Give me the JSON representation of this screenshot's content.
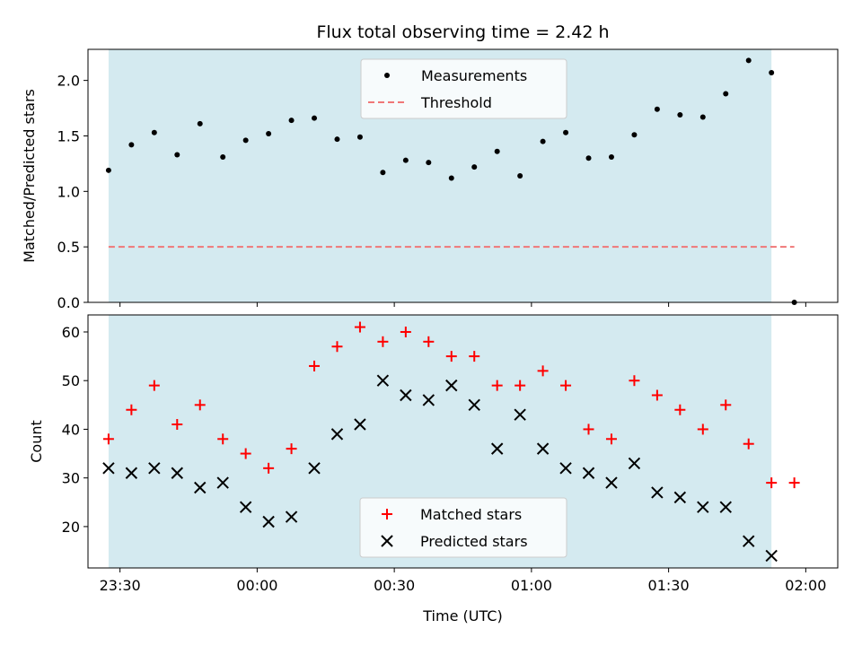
{
  "chart_data": [
    {
      "type": "scatter",
      "title": "Flux total observing time = 2.42 h",
      "ylabel": "Matched/Predicted stars",
      "xlabel": "",
      "xlim": [
        -37,
        127
      ],
      "ylim": [
        0,
        2.28
      ],
      "yticks": [
        0.0,
        0.5,
        1.0,
        1.5,
        2.0
      ],
      "ytick_labels": [
        "0.0",
        "0.5",
        "1.0",
        "1.5",
        "2.0"
      ],
      "shaded_span": [
        -32.5,
        112.5
      ],
      "shaded_color": "#d4eaf0",
      "legend_position": "upper center",
      "series": [
        {
          "name": "Measurements",
          "kind": "points",
          "color": "#000000",
          "x": [
            -32.5,
            -27.5,
            -22.5,
            -17.5,
            -12.5,
            -7.5,
            -2.5,
            2.5,
            7.5,
            12.5,
            17.5,
            22.5,
            27.5,
            32.5,
            37.5,
            42.5,
            47.5,
            52.5,
            57.5,
            62.5,
            67.5,
            72.5,
            77.5,
            82.5,
            87.5,
            92.5,
            97.5,
            102.5,
            107.5,
            112.5,
            117.5
          ],
          "y": [
            1.19,
            1.42,
            1.53,
            1.33,
            1.61,
            1.31,
            1.46,
            1.52,
            1.64,
            1.66,
            1.47,
            1.49,
            1.17,
            1.28,
            1.26,
            1.12,
            1.22,
            1.36,
            1.14,
            1.45,
            1.53,
            1.3,
            1.31,
            1.51,
            1.74,
            1.69,
            1.67,
            1.88,
            2.18,
            2.07,
            0.0
          ]
        },
        {
          "name": "Threshold",
          "kind": "dashed-line",
          "color": "#f07777",
          "x": [
            -32.5,
            117.5
          ],
          "y": [
            0.5,
            0.5
          ]
        }
      ]
    },
    {
      "type": "scatter",
      "title": "",
      "ylabel": "Count",
      "xlabel": "Time (UTC)",
      "xlim": [
        -37,
        127
      ],
      "ylim": [
        11.5,
        63.5
      ],
      "yticks": [
        20,
        30,
        40,
        50,
        60
      ],
      "ytick_labels": [
        "20",
        "30",
        "40",
        "50",
        "60"
      ],
      "xticks": [
        -30,
        0,
        30,
        60,
        90,
        120
      ],
      "xtick_labels": [
        "23:30",
        "00:00",
        "00:30",
        "01:00",
        "01:30",
        "02:00"
      ],
      "shaded_span": [
        -32.5,
        112.5
      ],
      "shaded_color": "#d4eaf0",
      "legend_position": "lower center",
      "series": [
        {
          "name": "Matched stars",
          "marker": "plus",
          "color": "#ff0000",
          "x": [
            -32.5,
            -27.5,
            -22.5,
            -17.5,
            -12.5,
            -7.5,
            -2.5,
            2.5,
            7.5,
            12.5,
            17.5,
            22.5,
            27.5,
            32.5,
            37.5,
            42.5,
            47.5,
            52.5,
            57.5,
            62.5,
            67.5,
            72.5,
            77.5,
            82.5,
            87.5,
            92.5,
            97.5,
            102.5,
            107.5,
            112.5,
            117.5
          ],
          "y": [
            38,
            44,
            49,
            41,
            45,
            38,
            35,
            32,
            36,
            53,
            57,
            61,
            58,
            60,
            58,
            55,
            55,
            49,
            49,
            52,
            49,
            40,
            38,
            50,
            47,
            44,
            40,
            45,
            37,
            29,
            29
          ]
        },
        {
          "name": "Predicted stars",
          "marker": "x",
          "color": "#000000",
          "x": [
            -32.5,
            -27.5,
            -22.5,
            -17.5,
            -12.5,
            -7.5,
            -2.5,
            2.5,
            7.5,
            12.5,
            17.5,
            22.5,
            27.5,
            32.5,
            37.5,
            42.5,
            47.5,
            52.5,
            57.5,
            62.5,
            67.5,
            72.5,
            77.5,
            82.5,
            87.5,
            92.5,
            97.5,
            102.5,
            107.5,
            112.5
          ],
          "y": [
            32,
            31,
            32,
            31,
            28,
            29,
            24,
            21,
            22,
            32,
            39,
            41,
            50,
            47,
            46,
            49,
            45,
            36,
            43,
            36,
            32,
            31,
            29,
            33,
            27,
            26,
            24,
            24,
            17,
            14
          ]
        }
      ]
    }
  ]
}
